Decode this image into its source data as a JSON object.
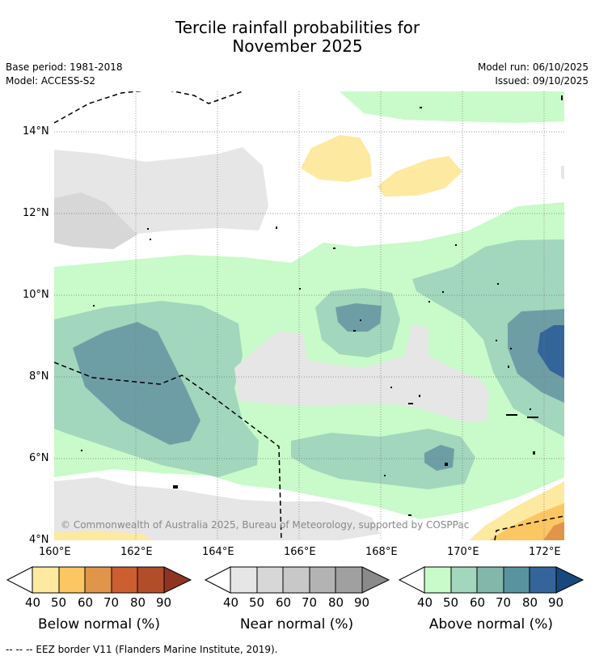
{
  "title": {
    "line1": "Tercile rainfall probabilities for",
    "line2": "November 2025"
  },
  "meta": {
    "base_period": "Base period: 1981-2018",
    "model": "Model: ACCESS-S2",
    "model_run": "Model run: 06/10/2025",
    "issued": "Issued: 09/10/2025"
  },
  "map": {
    "lat_labels": [
      "14°N",
      "12°N",
      "10°N",
      "8°N",
      "6°N",
      "4°N"
    ],
    "lon_labels": [
      "160°E",
      "162°E",
      "164°E",
      "166°E",
      "168°E",
      "170°E",
      "172°E"
    ],
    "copyright": "© Commonwealth of Australia 2025, Bureau of Meteorology, supported by COSPPac"
  },
  "colorbars": {
    "below": {
      "title": "Below normal (%)",
      "ticks": [
        "40",
        "50",
        "60",
        "70",
        "80",
        "90"
      ],
      "colors": [
        "#fde9a0",
        "#fcc663",
        "#e0954a",
        "#cc5e30",
        "#b24d2a",
        "#8e3421"
      ]
    },
    "near": {
      "title": "Near normal (%)",
      "ticks": [
        "40",
        "50",
        "60",
        "70",
        "80",
        "90"
      ],
      "colors": [
        "#e6e6e6",
        "#d7d7d7",
        "#c8c8c8",
        "#b3b3b3",
        "#a0a0a0",
        "#8a8a8a"
      ]
    },
    "above": {
      "title": "Above normal (%)",
      "ticks": [
        "40",
        "50",
        "60",
        "70",
        "80",
        "90"
      ],
      "colors": [
        "#c9fac9",
        "#a2d6bd",
        "#82b8aa",
        "#5a93a0",
        "#33659a",
        "#17497f"
      ]
    }
  },
  "footnote": "--  --  -- EEZ border V11 (Flanders Marine Institute, 2019)."
}
